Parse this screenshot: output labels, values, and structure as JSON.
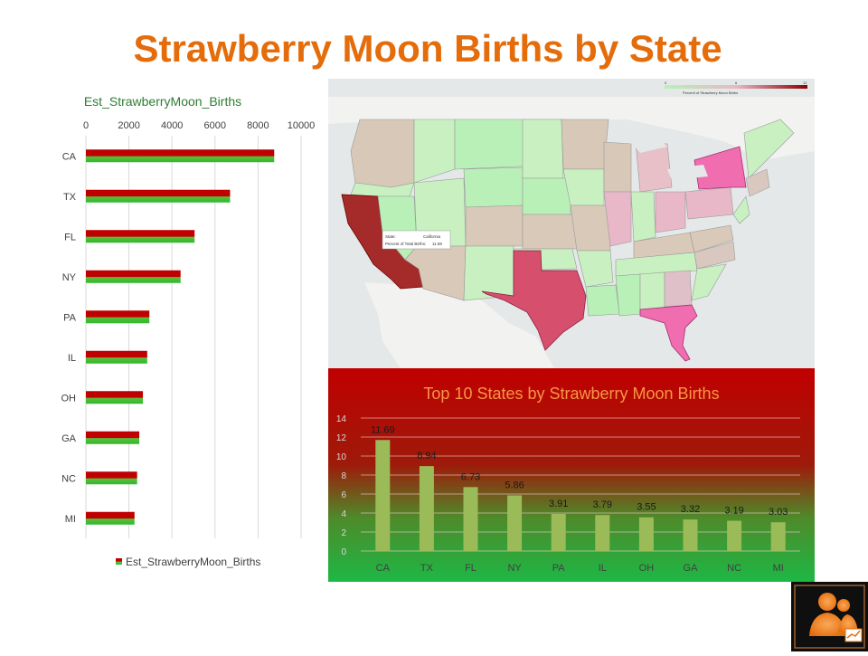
{
  "page": {
    "title": "Strawberry Moon Births by State"
  },
  "chart_data": [
    {
      "type": "bar",
      "orientation": "horizontal",
      "title": "Est_StrawberryMoon_Births",
      "categories": [
        "CA",
        "TX",
        "FL",
        "NY",
        "PA",
        "IL",
        "OH",
        "GA",
        "NC",
        "MI"
      ],
      "series": [
        {
          "name": "Est_StrawberryMoon_Births",
          "values": [
            8750,
            6700,
            5050,
            4400,
            2950,
            2850,
            2650,
            2480,
            2380,
            2260
          ]
        }
      ],
      "xlim": [
        0,
        10000
      ],
      "xticks": [
        "0",
        "2000",
        "4000",
        "6000",
        "8000",
        "10000"
      ],
      "grid": true,
      "legend": "bottom",
      "colors": {
        "bar_top": "#C00000",
        "bar_bottom": "#2EB82E",
        "title": "#2E7D32"
      }
    },
    {
      "type": "bar",
      "title": "Top 10 States by Strawberry Moon Births",
      "categories": [
        "CA",
        "TX",
        "FL",
        "NY",
        "PA",
        "IL",
        "OH",
        "GA",
        "NC",
        "MI"
      ],
      "series": [
        {
          "values": [
            11.69,
            8.94,
            6.73,
            5.86,
            3.91,
            3.79,
            3.55,
            3.32,
            3.19,
            3.03
          ]
        }
      ],
      "data_labels": [
        "11.69",
        "8.94",
        "6.73",
        "5.86",
        "3.91",
        "3.79",
        "3.55",
        "3.32",
        "3.19",
        "3.03"
      ],
      "ylim": [
        0,
        14
      ],
      "yticks": [
        "0",
        "2",
        "4",
        "6",
        "8",
        "10",
        "12",
        "14"
      ],
      "grid": true,
      "colors": {
        "bar": "#9BBB59",
        "title": "#F79646",
        "bg_top": "#C00000",
        "bg_bottom": "#1DB845"
      }
    },
    {
      "type": "heatmap",
      "legend_label": "Percent of Strawberry Moon Births",
      "legend_ticks": [
        "0",
        "6",
        "12"
      ],
      "tooltip": {
        "state_label": "State:",
        "state_value": "California",
        "percent_label": "Percent of Total Births:",
        "percent_value": "11.69"
      },
      "highlighted_states": [
        {
          "state": "California",
          "value": 11.69,
          "color": "#A52A2A"
        },
        {
          "state": "Texas",
          "value": 8.94,
          "color": "#D6506E"
        },
        {
          "state": "Florida",
          "value": 6.73,
          "color": "#F06EB0"
        },
        {
          "state": "New York",
          "value": 5.86,
          "color": "#F06EB0"
        }
      ],
      "colors": {
        "low": "#B8F0B8",
        "mid": "#D9C9B8",
        "high": "#8B0000"
      }
    }
  ],
  "logo": {
    "icon": "people-growth-icon",
    "color": "#F79646"
  }
}
